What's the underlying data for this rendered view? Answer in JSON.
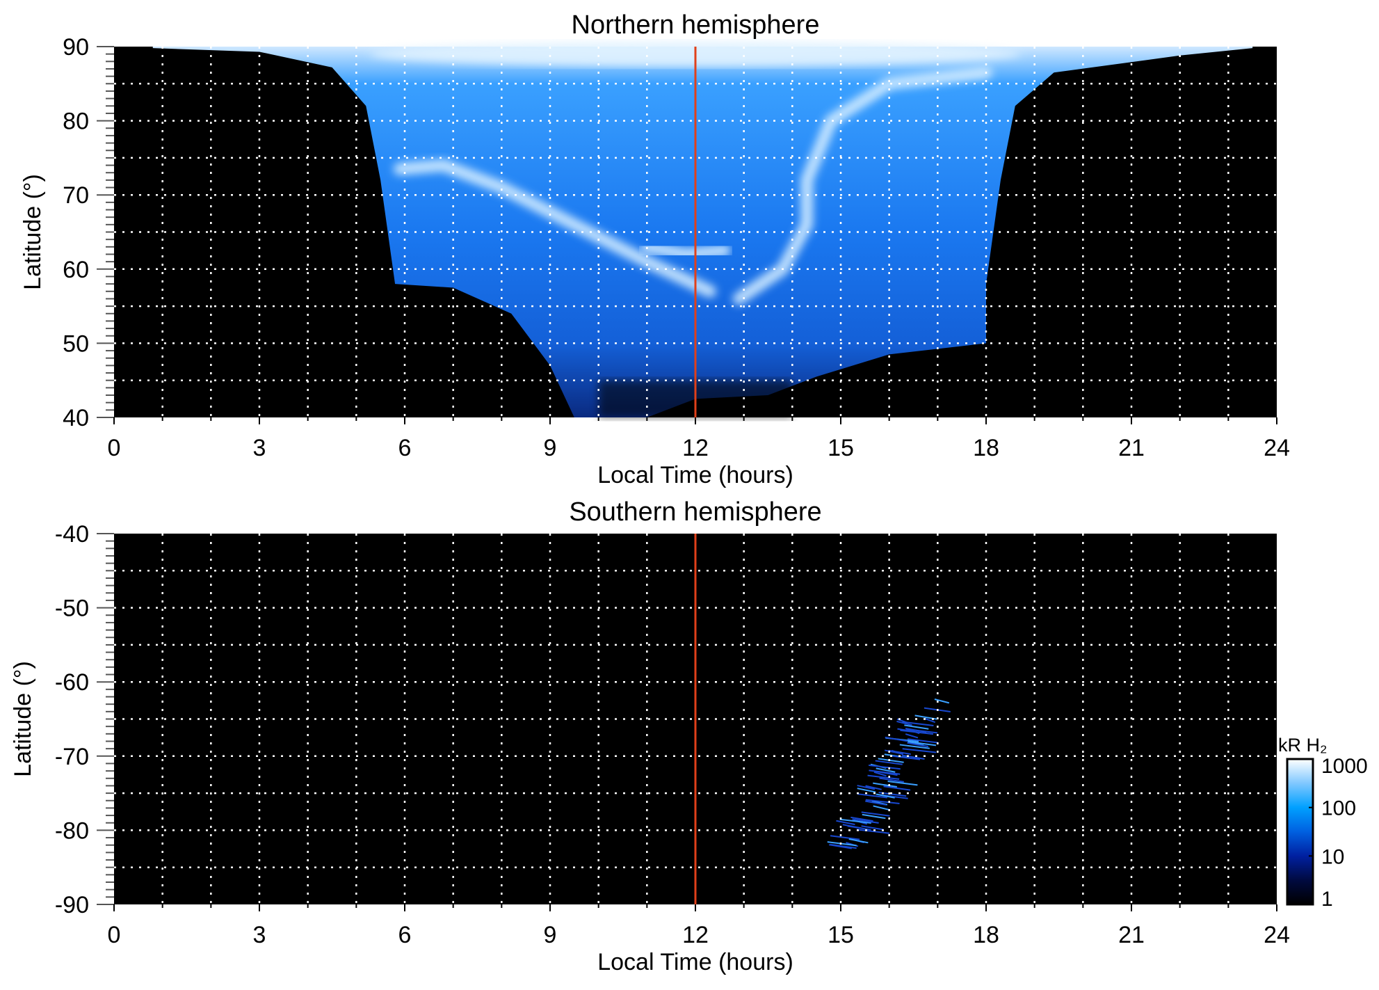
{
  "chart_data": [
    {
      "type": "heatmap",
      "title": "Northern hemisphere",
      "xlabel": "Local Time (hours)",
      "ylabel": "Latitude (°)",
      "xlim": [
        0,
        24
      ],
      "ylim": [
        40,
        90
      ],
      "xticks": [
        "0",
        "3",
        "6",
        "9",
        "12",
        "15",
        "18",
        "21",
        "24"
      ],
      "yticks": [
        "40",
        "50",
        "60",
        "70",
        "80",
        "90"
      ],
      "grid": true,
      "marker_line_x": 12,
      "marker_line_color": "#e0401a",
      "coverage_boundary": [
        [
          0.8,
          89.8
        ],
        [
          3,
          89.3
        ],
        [
          4.5,
          87.2
        ],
        [
          5.2,
          82
        ],
        [
          5.5,
          72
        ],
        [
          5.8,
          58
        ],
        [
          7,
          57.5
        ],
        [
          8.2,
          54
        ],
        [
          9,
          47
        ],
        [
          9.5,
          40
        ],
        [
          11,
          40
        ],
        [
          12,
          42.5
        ],
        [
          13.5,
          43
        ],
        [
          14.5,
          45.5
        ],
        [
          16,
          48.5
        ],
        [
          18,
          50
        ],
        [
          18,
          58
        ],
        [
          18.3,
          72
        ],
        [
          18.6,
          82
        ],
        [
          19.4,
          86.5
        ],
        [
          22,
          88.8
        ],
        [
          23.5,
          89.8
        ],
        [
          23.5,
          90
        ],
        [
          0.8,
          90
        ]
      ],
      "bright_features": [
        [
          [
            5.9,
            73.5
          ],
          [
            6.8,
            74
          ],
          [
            8,
            71
          ],
          [
            9.5,
            66
          ],
          [
            11,
            61
          ],
          [
            12.3,
            57
          ]
        ],
        [
          [
            12.9,
            56
          ],
          [
            13.8,
            60
          ],
          [
            14.3,
            66
          ],
          [
            14.3,
            72
          ],
          [
            14.8,
            80
          ],
          [
            16,
            85
          ],
          [
            18,
            86.5
          ]
        ],
        [
          [
            11,
            63
          ],
          [
            11.8,
            62
          ],
          [
            12.6,
            62.5
          ]
        ]
      ]
    },
    {
      "type": "heatmap",
      "title": "Southern hemisphere",
      "xlabel": "Local Time (hours)",
      "ylabel": "Latitude (°)",
      "xlim": [
        0,
        24
      ],
      "ylim": [
        -90,
        -40
      ],
      "xticks": [
        "0",
        "3",
        "6",
        "9",
        "12",
        "15",
        "18",
        "21",
        "24"
      ],
      "yticks": [
        "-90",
        "-80",
        "-70",
        "-60",
        "-50",
        "-40"
      ],
      "grid": true,
      "marker_line_x": 12,
      "marker_line_color": "#e0401a",
      "coverage_boundary": [
        [
          15,
          -73
        ],
        [
          15.6,
          -67
        ],
        [
          16.4,
          -64
        ],
        [
          17,
          -61
        ],
        [
          17.5,
          -62
        ],
        [
          17.4,
          -70
        ],
        [
          17.2,
          -79
        ],
        [
          16.6,
          -82
        ],
        [
          15.6,
          -80
        ],
        [
          15,
          -77
        ]
      ]
    }
  ],
  "colorbar": {
    "label": "kR H₂",
    "scale": "log",
    "range": [
      1,
      1000
    ],
    "ticks": [
      "1",
      "10",
      "100",
      "1000"
    ],
    "colors": [
      "#000000",
      "#000a40",
      "#0020a0",
      "#0060e0",
      "#00a0ff",
      "#80c8ff",
      "#ffffff"
    ]
  }
}
